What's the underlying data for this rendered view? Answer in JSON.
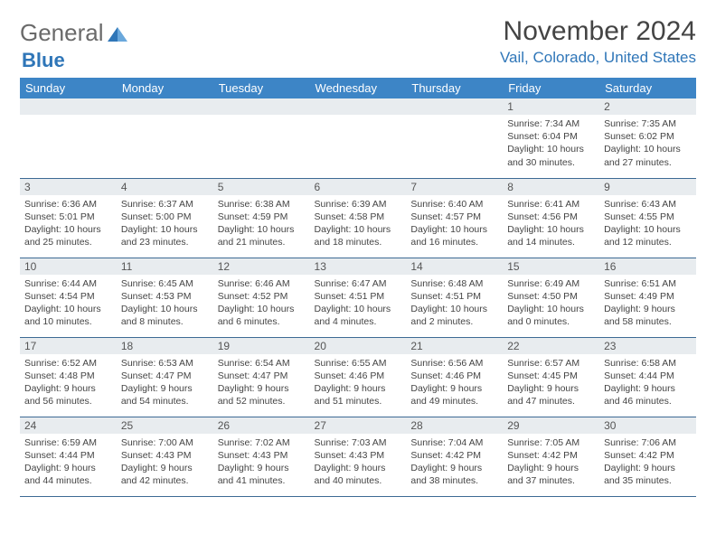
{
  "logo": {
    "part1": "General",
    "part2": "Blue"
  },
  "title": "November 2024",
  "location": "Vail, Colorado, United States",
  "header_color": "#3d85c6",
  "daynum_bg": "#e8ecef",
  "border_color": "#3d6a94",
  "weekdays": [
    "Sunday",
    "Monday",
    "Tuesday",
    "Wednesday",
    "Thursday",
    "Friday",
    "Saturday"
  ],
  "weeks": [
    [
      null,
      null,
      null,
      null,
      null,
      {
        "n": "1",
        "sunrise": "7:34 AM",
        "sunset": "6:04 PM",
        "day_h": "10",
        "day_m": "30"
      },
      {
        "n": "2",
        "sunrise": "7:35 AM",
        "sunset": "6:02 PM",
        "day_h": "10",
        "day_m": "27"
      }
    ],
    [
      {
        "n": "3",
        "sunrise": "6:36 AM",
        "sunset": "5:01 PM",
        "day_h": "10",
        "day_m": "25"
      },
      {
        "n": "4",
        "sunrise": "6:37 AM",
        "sunset": "5:00 PM",
        "day_h": "10",
        "day_m": "23"
      },
      {
        "n": "5",
        "sunrise": "6:38 AM",
        "sunset": "4:59 PM",
        "day_h": "10",
        "day_m": "21"
      },
      {
        "n": "6",
        "sunrise": "6:39 AM",
        "sunset": "4:58 PM",
        "day_h": "10",
        "day_m": "18"
      },
      {
        "n": "7",
        "sunrise": "6:40 AM",
        "sunset": "4:57 PM",
        "day_h": "10",
        "day_m": "16"
      },
      {
        "n": "8",
        "sunrise": "6:41 AM",
        "sunset": "4:56 PM",
        "day_h": "10",
        "day_m": "14"
      },
      {
        "n": "9",
        "sunrise": "6:43 AM",
        "sunset": "4:55 PM",
        "day_h": "10",
        "day_m": "12"
      }
    ],
    [
      {
        "n": "10",
        "sunrise": "6:44 AM",
        "sunset": "4:54 PM",
        "day_h": "10",
        "day_m": "10"
      },
      {
        "n": "11",
        "sunrise": "6:45 AM",
        "sunset": "4:53 PM",
        "day_h": "10",
        "day_m": "8"
      },
      {
        "n": "12",
        "sunrise": "6:46 AM",
        "sunset": "4:52 PM",
        "day_h": "10",
        "day_m": "6"
      },
      {
        "n": "13",
        "sunrise": "6:47 AM",
        "sunset": "4:51 PM",
        "day_h": "10",
        "day_m": "4"
      },
      {
        "n": "14",
        "sunrise": "6:48 AM",
        "sunset": "4:51 PM",
        "day_h": "10",
        "day_m": "2"
      },
      {
        "n": "15",
        "sunrise": "6:49 AM",
        "sunset": "4:50 PM",
        "day_h": "10",
        "day_m": "0"
      },
      {
        "n": "16",
        "sunrise": "6:51 AM",
        "sunset": "4:49 PM",
        "day_h": "9",
        "day_m": "58"
      }
    ],
    [
      {
        "n": "17",
        "sunrise": "6:52 AM",
        "sunset": "4:48 PM",
        "day_h": "9",
        "day_m": "56"
      },
      {
        "n": "18",
        "sunrise": "6:53 AM",
        "sunset": "4:47 PM",
        "day_h": "9",
        "day_m": "54"
      },
      {
        "n": "19",
        "sunrise": "6:54 AM",
        "sunset": "4:47 PM",
        "day_h": "9",
        "day_m": "52"
      },
      {
        "n": "20",
        "sunrise": "6:55 AM",
        "sunset": "4:46 PM",
        "day_h": "9",
        "day_m": "51"
      },
      {
        "n": "21",
        "sunrise": "6:56 AM",
        "sunset": "4:46 PM",
        "day_h": "9",
        "day_m": "49"
      },
      {
        "n": "22",
        "sunrise": "6:57 AM",
        "sunset": "4:45 PM",
        "day_h": "9",
        "day_m": "47"
      },
      {
        "n": "23",
        "sunrise": "6:58 AM",
        "sunset": "4:44 PM",
        "day_h": "9",
        "day_m": "46"
      }
    ],
    [
      {
        "n": "24",
        "sunrise": "6:59 AM",
        "sunset": "4:44 PM",
        "day_h": "9",
        "day_m": "44"
      },
      {
        "n": "25",
        "sunrise": "7:00 AM",
        "sunset": "4:43 PM",
        "day_h": "9",
        "day_m": "42"
      },
      {
        "n": "26",
        "sunrise": "7:02 AM",
        "sunset": "4:43 PM",
        "day_h": "9",
        "day_m": "41"
      },
      {
        "n": "27",
        "sunrise": "7:03 AM",
        "sunset": "4:43 PM",
        "day_h": "9",
        "day_m": "40"
      },
      {
        "n": "28",
        "sunrise": "7:04 AM",
        "sunset": "4:42 PM",
        "day_h": "9",
        "day_m": "38"
      },
      {
        "n": "29",
        "sunrise": "7:05 AM",
        "sunset": "4:42 PM",
        "day_h": "9",
        "day_m": "37"
      },
      {
        "n": "30",
        "sunrise": "7:06 AM",
        "sunset": "4:42 PM",
        "day_h": "9",
        "day_m": "35"
      }
    ]
  ],
  "labels": {
    "sunrise": "Sunrise:",
    "sunset": "Sunset:",
    "daylight": "Daylight:",
    "hours": "hours",
    "and": "and",
    "minutes": "minutes."
  }
}
